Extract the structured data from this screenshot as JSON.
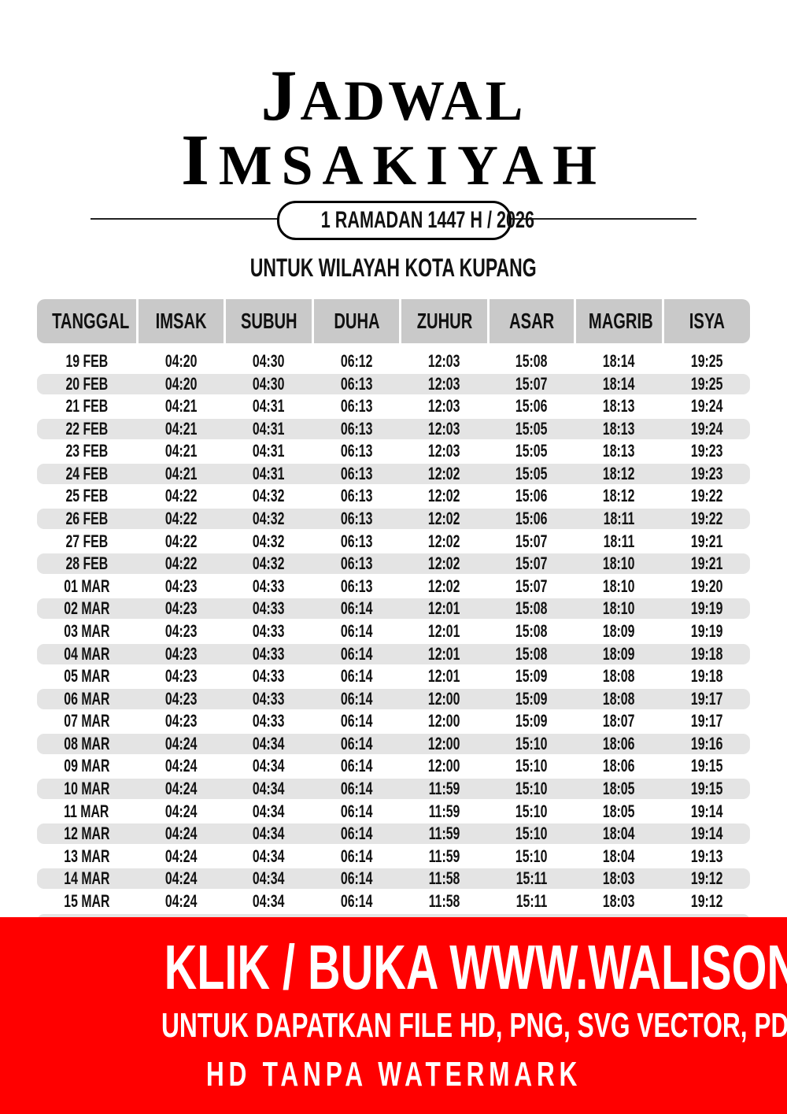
{
  "title": {
    "line1": "Jadwal",
    "line2": "Imsakiyah"
  },
  "period": "1 RAMADAN 1447 H / 2026",
  "region": "UNTUK WILAYAH KOTA KUPANG",
  "table": {
    "headers": [
      "TANGGAL",
      "IMSAK",
      "SUBUH",
      "DUHA",
      "ZUHUR",
      "ASAR",
      "MAGRIB",
      "ISYA"
    ],
    "rows": [
      [
        "19 FEB",
        "04:20",
        "04:30",
        "06:12",
        "12:03",
        "15:08",
        "18:14",
        "19:25"
      ],
      [
        "20 FEB",
        "04:20",
        "04:30",
        "06:13",
        "12:03",
        "15:07",
        "18:14",
        "19:25"
      ],
      [
        "21 FEB",
        "04:21",
        "04:31",
        "06:13",
        "12:03",
        "15:06",
        "18:13",
        "19:24"
      ],
      [
        "22 FEB",
        "04:21",
        "04:31",
        "06:13",
        "12:03",
        "15:05",
        "18:13",
        "19:24"
      ],
      [
        "23 FEB",
        "04:21",
        "04:31",
        "06:13",
        "12:03",
        "15:05",
        "18:13",
        "19:23"
      ],
      [
        "24 FEB",
        "04:21",
        "04:31",
        "06:13",
        "12:02",
        "15:05",
        "18:12",
        "19:23"
      ],
      [
        "25 FEB",
        "04:22",
        "04:32",
        "06:13",
        "12:02",
        "15:06",
        "18:12",
        "19:22"
      ],
      [
        "26 FEB",
        "04:22",
        "04:32",
        "06:13",
        "12:02",
        "15:06",
        "18:11",
        "19:22"
      ],
      [
        "27 FEB",
        "04:22",
        "04:32",
        "06:13",
        "12:02",
        "15:07",
        "18:11",
        "19:21"
      ],
      [
        "28 FEB",
        "04:22",
        "04:32",
        "06:13",
        "12:02",
        "15:07",
        "18:10",
        "19:21"
      ],
      [
        "01 MAR",
        "04:23",
        "04:33",
        "06:13",
        "12:02",
        "15:07",
        "18:10",
        "19:20"
      ],
      [
        "02 MAR",
        "04:23",
        "04:33",
        "06:14",
        "12:01",
        "15:08",
        "18:10",
        "19:19"
      ],
      [
        "03 MAR",
        "04:23",
        "04:33",
        "06:14",
        "12:01",
        "15:08",
        "18:09",
        "19:19"
      ],
      [
        "04 MAR",
        "04:23",
        "04:33",
        "06:14",
        "12:01",
        "15:08",
        "18:09",
        "19:18"
      ],
      [
        "05 MAR",
        "04:23",
        "04:33",
        "06:14",
        "12:01",
        "15:09",
        "18:08",
        "19:18"
      ],
      [
        "06 MAR",
        "04:23",
        "04:33",
        "06:14",
        "12:00",
        "15:09",
        "18:08",
        "19:17"
      ],
      [
        "07 MAR",
        "04:23",
        "04:33",
        "06:14",
        "12:00",
        "15:09",
        "18:07",
        "19:17"
      ],
      [
        "08 MAR",
        "04:24",
        "04:34",
        "06:14",
        "12:00",
        "15:10",
        "18:06",
        "19:16"
      ],
      [
        "09 MAR",
        "04:24",
        "04:34",
        "06:14",
        "12:00",
        "15:10",
        "18:06",
        "19:15"
      ],
      [
        "10 MAR",
        "04:24",
        "04:34",
        "06:14",
        "11:59",
        "15:10",
        "18:05",
        "19:15"
      ],
      [
        "11 MAR",
        "04:24",
        "04:34",
        "06:14",
        "11:59",
        "15:10",
        "18:05",
        "19:14"
      ],
      [
        "12 MAR",
        "04:24",
        "04:34",
        "06:14",
        "11:59",
        "15:10",
        "18:04",
        "19:14"
      ],
      [
        "13 MAR",
        "04:24",
        "04:34",
        "06:14",
        "11:59",
        "15:10",
        "18:04",
        "19:13"
      ],
      [
        "14 MAR",
        "04:24",
        "04:34",
        "06:14",
        "11:58",
        "15:11",
        "18:03",
        "19:12"
      ],
      [
        "15 MAR",
        "04:24",
        "04:34",
        "06:14",
        "11:58",
        "15:11",
        "18:03",
        "19:12"
      ]
    ]
  },
  "banner": {
    "line1": "KLIK / BUKA WWW.WALISONGO.CO.ID",
    "line2": "UNTUK DAPATKAN FILE HD, PNG, SVG VECTOR, PDF, WORD, EXCEL",
    "line3": "HD TANPA WATERMARK",
    "color": "#ff0000"
  }
}
